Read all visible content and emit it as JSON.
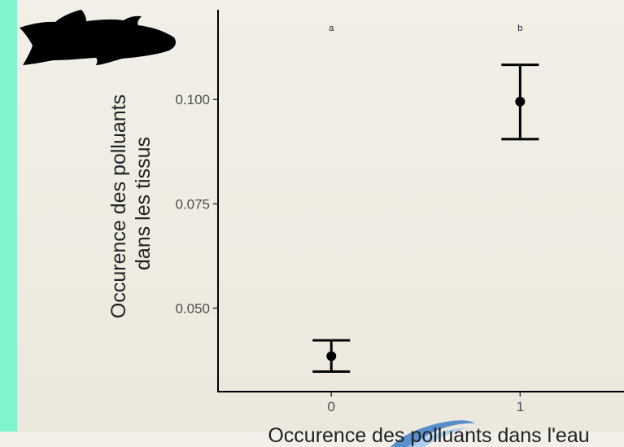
{
  "chart_data": {
    "type": "scatter",
    "x": [
      0,
      1
    ],
    "x_tick_labels": [
      "0",
      "1"
    ],
    "y": [
      0.0385,
      0.0995
    ],
    "y_err_low": [
      0.0348,
      0.0905
    ],
    "y_err_high": [
      0.0423,
      0.1083
    ],
    "y_ticks": [
      0.05,
      0.075,
      0.1
    ],
    "y_tick_labels": [
      "0.050",
      "0.075",
      "0.100"
    ],
    "xlim": [
      -0.6,
      1.55
    ],
    "ylim": [
      0.03,
      0.1215
    ],
    "group_letters": [
      "a",
      "b"
    ],
    "xlabel": "Occurence des polluants dans l'eau",
    "ylabel_lines": [
      "Occurence des polluants",
      "dans les tissus"
    ],
    "grid": false,
    "colors": {
      "points": "#000000",
      "axis": "#000000",
      "accent": "#7ff5cf"
    }
  },
  "icons": {
    "top_left": "fish-silhouette-icon",
    "bottom": "wave-logo-icon"
  }
}
